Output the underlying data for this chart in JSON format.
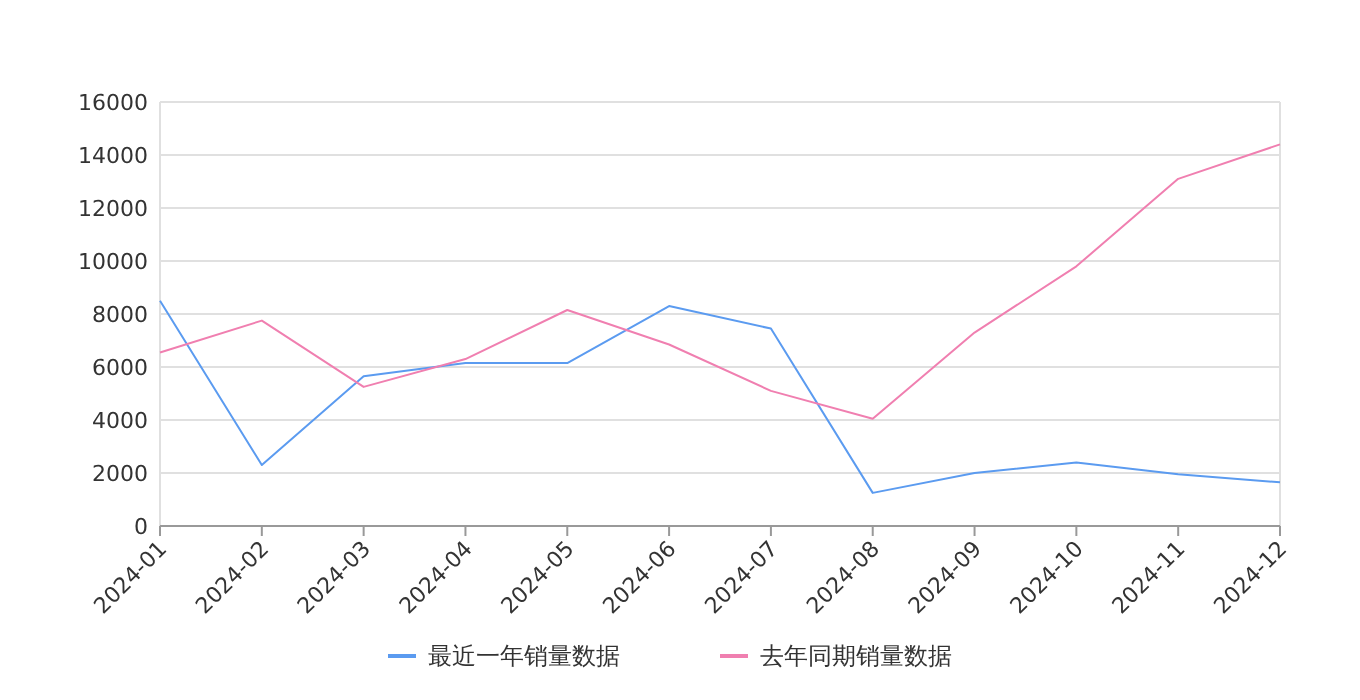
{
  "chart_data": {
    "type": "line",
    "categories": [
      "2024-01",
      "2024-02",
      "2024-03",
      "2024-04",
      "2024-05",
      "2024-06",
      "2024-07",
      "2024-08",
      "2024-09",
      "2024-10",
      "2024-11",
      "2024-12"
    ],
    "series": [
      {
        "name": "最近一年销量数据",
        "color": "#5b9bf0",
        "values": [
          8500,
          2300,
          5650,
          6150,
          6150,
          8300,
          7450,
          1250,
          2000,
          2400,
          1950,
          1650
        ]
      },
      {
        "name": "去年同期销量数据",
        "color": "#f07fb0",
        "values": [
          6550,
          7750,
          5250,
          6300,
          8150,
          6850,
          5100,
          4050,
          7300,
          9800,
          13100,
          14400
        ]
      }
    ],
    "ylim": [
      0,
      16000
    ],
    "yticks": [
      0,
      2000,
      4000,
      6000,
      8000,
      10000,
      12000,
      14000,
      16000
    ],
    "grid": "y",
    "legend": "bottom",
    "marker": "none",
    "line_style": "solid"
  }
}
